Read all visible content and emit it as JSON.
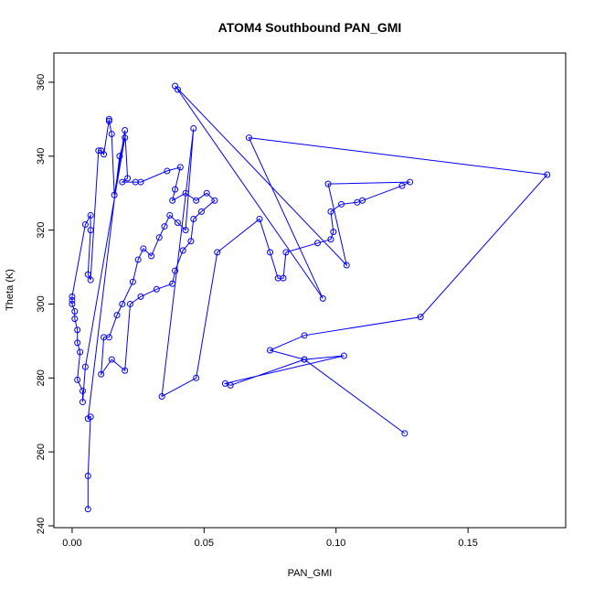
{
  "chart_data": {
    "type": "line",
    "title": "ATOM4 Southbound PAN_GMI",
    "x_label": "PAN_GMI",
    "y_label": "Theta (K)",
    "color": "#0000ff",
    "xlim": [
      -0.0069,
      0.187
    ],
    "ylim": [
      239.5,
      367.9
    ],
    "xticks": [
      {
        "value": 0,
        "label": "0.00"
      },
      0.05,
      {
        "value": 0.1,
        "label": "0.10"
      },
      0.15
    ],
    "yticks": [
      240,
      260,
      280,
      300,
      320,
      340,
      360
    ],
    "x": [
      0.006,
      0.006,
      0.007,
      0.006,
      0.018,
      0.02,
      0.005,
      0.004,
      0.004,
      0.002,
      0.003,
      0.002,
      0.002,
      0.001,
      0.001,
      0,
      0,
      0,
      0.005,
      0.007,
      0.007,
      0.006,
      0.007,
      0.01,
      0.011,
      0.012,
      0.014,
      0.014,
      0.015,
      0.016,
      0.02,
      0.021,
      0.019,
      0.024,
      0.026,
      0.036,
      0.041,
      0.039,
      0.038,
      0.043,
      0.047,
      0.051,
      0.054,
      0.049,
      0.046,
      0.045,
      0.042,
      0.039,
      0.038,
      0.032,
      0.026,
      0.022,
      0.02,
      0.015,
      0.011,
      0.012,
      0.014,
      0.017,
      0.019,
      0.023,
      0.025,
      0.027,
      0.03,
      0.033,
      0.035,
      0.037,
      0.04,
      0.043,
      0.046,
      0.034,
      0.047,
      0.055,
      0.071,
      0.075,
      0.078,
      0.08,
      0.081,
      0.093,
      0.098,
      0.099,
      0.098,
      0.102,
      0.108,
      0.11,
      0.125,
      0.128,
      0.097,
      0.104,
      0.039,
      0.04,
      0.095,
      0.067,
      0.18,
      0.132,
      0.088,
      0.075,
      0.088,
      0.103,
      0.058,
      0.06,
      0.088,
      0.126
    ],
    "values": [
      244.5,
      253.5,
      269.5,
      269,
      340,
      345,
      283,
      273.5,
      276.5,
      279.5,
      287,
      289.5,
      293,
      296,
      298,
      300,
      301,
      302,
      321.5,
      324,
      320,
      308,
      306.5,
      341.5,
      341.5,
      340.5,
      350,
      349.5,
      346,
      329.5,
      347,
      334,
      333,
      333,
      333,
      336,
      337,
      331,
      328,
      330,
      328,
      330,
      328,
      325,
      323,
      317,
      314.5,
      309,
      305.5,
      304,
      302,
      300,
      282,
      285,
      281,
      291,
      291,
      297,
      300,
      306,
      312,
      315,
      313,
      318,
      321,
      324,
      322,
      320,
      347.5,
      275,
      280,
      314,
      323,
      314,
      307,
      307,
      314,
      316.5,
      317.5,
      319.5,
      325,
      327,
      327.5,
      328,
      332,
      333,
      332.5,
      310.5,
      359,
      358,
      301.5,
      345,
      335,
      296.5,
      291.5,
      287.5,
      285,
      286,
      278.5,
      278,
      285,
      265
    ]
  }
}
